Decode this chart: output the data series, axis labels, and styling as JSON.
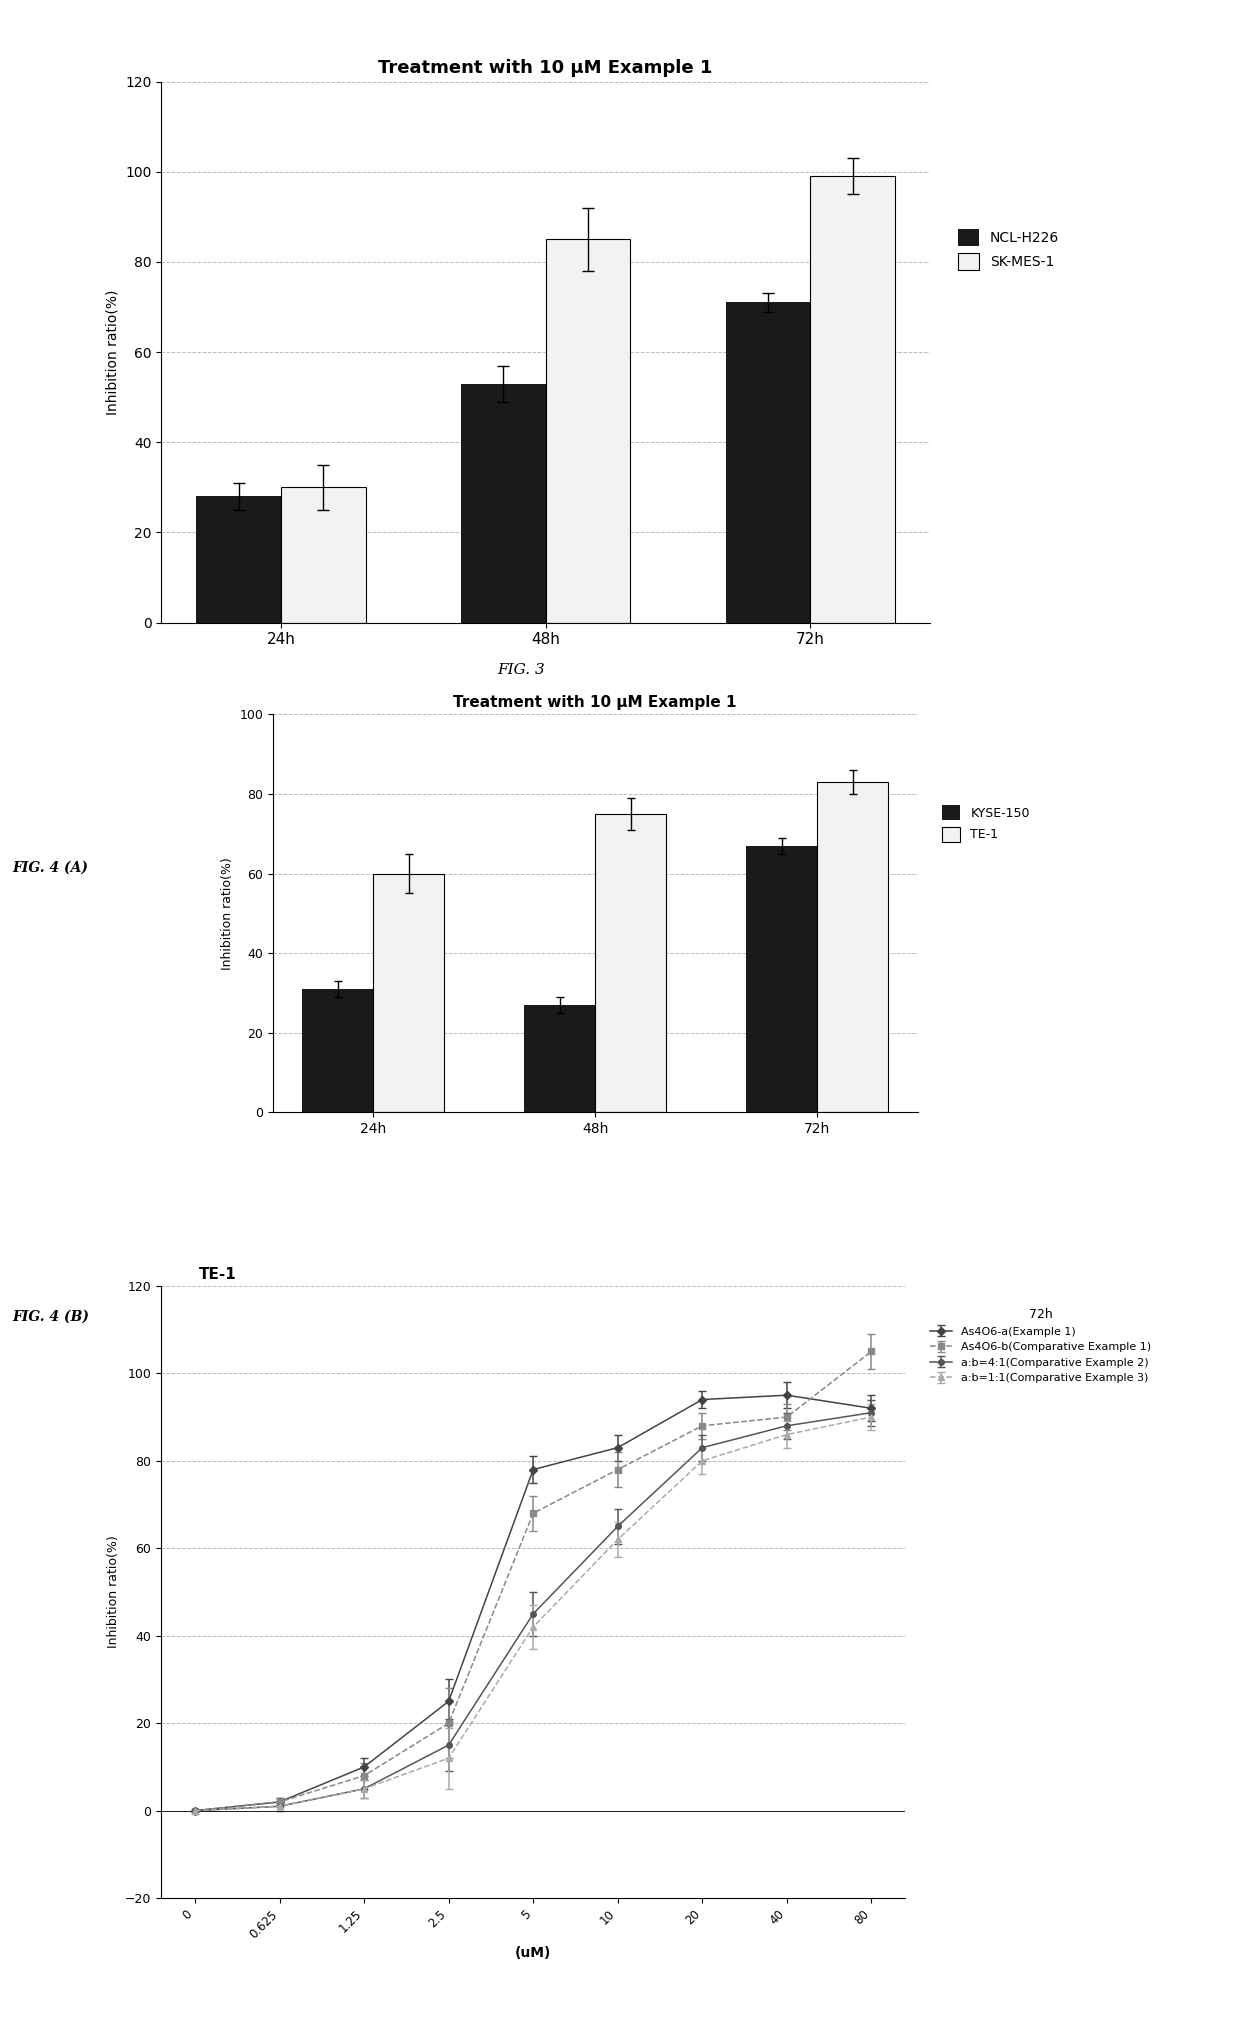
{
  "fig3": {
    "title": "Treatment with 10 μM Example 1",
    "categories": [
      "24h",
      "48h",
      "72h"
    ],
    "ncl_values": [
      28,
      53,
      71
    ],
    "ncl_errors": [
      3,
      4,
      2
    ],
    "sk_values": [
      30,
      85,
      99
    ],
    "sk_errors": [
      5,
      7,
      4
    ],
    "ylim": [
      0,
      120
    ],
    "yticks": [
      0,
      20,
      40,
      60,
      80,
      100,
      120
    ],
    "ylabel": "Inhibition ratio(%)",
    "legend1": "NCL-H226",
    "legend2": "SK-MES-1",
    "fig_label": "FIG. 3"
  },
  "fig4a": {
    "title": "Treatment with 10 μM Example 1",
    "categories": [
      "24h",
      "48h",
      "72h"
    ],
    "kyse_values": [
      31,
      27,
      67
    ],
    "kyse_errors": [
      2,
      2,
      2
    ],
    "te1_values": [
      60,
      75,
      83
    ],
    "te1_errors": [
      5,
      4,
      3
    ],
    "ylim": [
      0,
      100
    ],
    "yticks": [
      0,
      20,
      40,
      60,
      80,
      100
    ],
    "ylabel": "Inhibition ratio(%)",
    "legend1": "KYSE-150",
    "legend2": "TE-1",
    "panel_label": "FIG. 4 (A)"
  },
  "fig4b": {
    "title": "TE-1",
    "xlabel": "(uM)",
    "ylabel": "Inhibition ratio(%)",
    "xlabels": [
      "0",
      "0.625",
      "1.25",
      "2.5",
      "5",
      "10",
      "20",
      "40",
      "80"
    ],
    "xvalues": [
      0,
      0.625,
      1.25,
      2.5,
      5,
      10,
      20,
      40,
      80
    ],
    "ylim": [
      -20,
      120
    ],
    "yticks": [
      -20,
      0,
      20,
      40,
      60,
      80,
      100,
      120
    ],
    "series": {
      "As4O6_a": {
        "label": "As4O6-a(Example 1)",
        "values": [
          0,
          2,
          10,
          25,
          78,
          83,
          94,
          95,
          92
        ],
        "errors": [
          0,
          1,
          2,
          5,
          3,
          3,
          2,
          3,
          3
        ],
        "color": "#444444",
        "marker": "D",
        "linestyle": "-"
      },
      "As4O6_b": {
        "label": "As4O6-b(Comparative Example 1)",
        "values": [
          0,
          2,
          8,
          20,
          68,
          78,
          88,
          90,
          105
        ],
        "errors": [
          0,
          1,
          3,
          8,
          4,
          4,
          3,
          3,
          4
        ],
        "color": "#888888",
        "marker": "s",
        "linestyle": "--"
      },
      "ab_4_1": {
        "label": "a:b=4:1(Comparative Example 2)",
        "values": [
          0,
          1,
          5,
          15,
          45,
          65,
          83,
          88,
          91
        ],
        "errors": [
          0,
          1,
          2,
          6,
          5,
          4,
          3,
          3,
          3
        ],
        "color": "#555555",
        "marker": "o",
        "linestyle": "-"
      },
      "ab_1_1": {
        "label": "a:b=1:1(Comparative Example 3)",
        "values": [
          0,
          1,
          5,
          12,
          42,
          62,
          80,
          86,
          90
        ],
        "errors": [
          0,
          1,
          2,
          7,
          5,
          4,
          3,
          3,
          3
        ],
        "color": "#aaaaaa",
        "marker": "^",
        "linestyle": "--"
      }
    },
    "panel_label": "FIG. 4 (B)"
  },
  "bg_color": "#ffffff",
  "bar_black": "#1a1a1a",
  "bar_white": "#f2f2f2",
  "grid_color": "#bbbbbb",
  "grid_linestyle": "--"
}
